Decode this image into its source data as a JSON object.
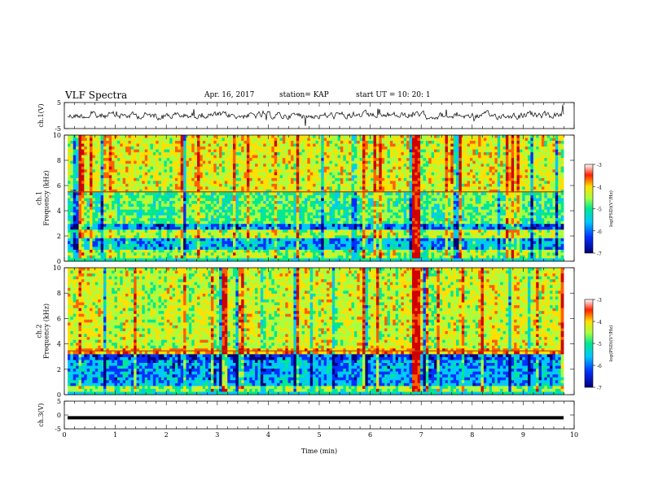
{
  "header": {
    "title": "VLF Spectra",
    "date": "Apr. 16, 2017",
    "station": "station= KAP",
    "start": "start UT =   10: 20: 1"
  },
  "chart_data": [
    {
      "type": "line",
      "name": "waveform-ch1",
      "ylabel": "ch.1(V)",
      "ylim": [
        -5,
        5
      ],
      "yticks": [
        "5",
        "-5"
      ],
      "xlim": [
        0,
        10
      ],
      "description_values": "noisy waveform, roughly within -2 to +2 V"
    },
    {
      "type": "heatmap",
      "name": "spectrogram-ch1",
      "ylabel": "ch.1\nFrequency (kHz)",
      "xlim": [
        0,
        10
      ],
      "ylim": [
        0,
        10
      ],
      "yticks": [
        "0",
        "2",
        "4",
        "6",
        "8",
        "10"
      ],
      "colorbar": {
        "label": "log(PSD)(V²/Hz)",
        "ticks": [
          "-3",
          "-4",
          "-5",
          "-6",
          "-7"
        ],
        "range": [
          -7,
          -3
        ]
      }
    },
    {
      "type": "heatmap",
      "name": "spectrogram-ch2",
      "ylabel": "ch.2\nFrequency (kHz)",
      "xlim": [
        0,
        10
      ],
      "ylim": [
        0,
        10
      ],
      "yticks": [
        "0",
        "2",
        "4",
        "6",
        "8",
        "10"
      ],
      "colorbar": {
        "label": "log(PSD)(V²/Hz)",
        "ticks": [
          "-3",
          "-4",
          "-5",
          "-6",
          "-7"
        ],
        "range": [
          -7,
          -3
        ]
      }
    },
    {
      "type": "line",
      "name": "waveform-ch3",
      "ylabel": "ch.3(V)",
      "ylim": [
        -5,
        5
      ],
      "yticks": [
        "5",
        "0",
        "-5"
      ],
      "xlim": [
        0,
        10
      ],
      "description_values": "flat thick line near -1 V"
    }
  ],
  "xaxis": {
    "label": "Time (min)",
    "ticks": [
      "0",
      "1",
      "2",
      "3",
      "4",
      "5",
      "6",
      "7",
      "8",
      "9",
      "10"
    ]
  },
  "colors": {
    "cmap": [
      "#00007a",
      "#0030ff",
      "#00c8ff",
      "#00e890",
      "#a8ff40",
      "#ffe000",
      "#ff6000",
      "#d00000"
    ]
  }
}
